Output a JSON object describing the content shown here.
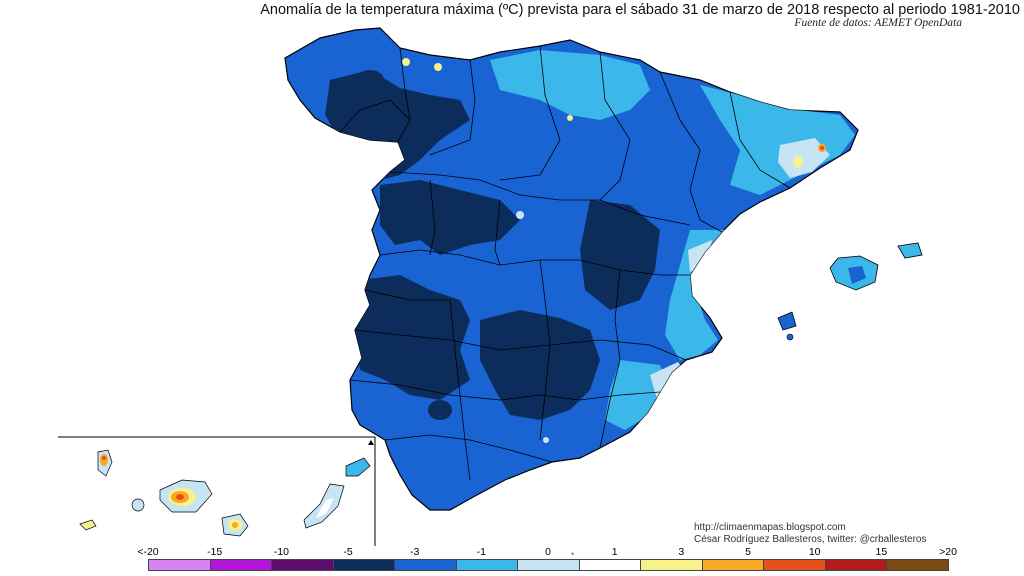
{
  "header": {
    "title": "Anomalía de la temperatura máxima (ºC) prevista para el sábado 31 de marzo de 2018 respecto al periodo 1981-2010",
    "source": "Fuente de datos: AEMET OpenData"
  },
  "credits": {
    "url": "http://climaenmapas.blogspot.com",
    "author": "César Rodríguez Ballesteros, twitter: @crballesteros"
  },
  "legend": {
    "ticks": [
      "<-20",
      "-15",
      "-10",
      "-5",
      "-3",
      "-1",
      "0",
      "1",
      "3",
      "5",
      "10",
      "15",
      ">20"
    ],
    "colors": [
      "#d783f2",
      "#b415d6",
      "#5d0d6e",
      "#0c2d5b",
      "#1a63d2",
      "#3bb7ea",
      "#c6e4f4",
      "#ffffff",
      "#f7f28a",
      "#f7a826",
      "#e5501b",
      "#b01c1c",
      "#7a4a12"
    ],
    "marker_symbol": "•"
  },
  "map_colors": {
    "anom_lt_-5": "#0c2d5b",
    "anom_-5_-3": "#1a63d2",
    "anom_-3_-1": "#3bb7ea",
    "anom_-1_0": "#c6e4f4",
    "anom_1_3": "#f7f28a",
    "anom_3_5": "#f7a826",
    "anom_5_10": "#e5501b"
  }
}
